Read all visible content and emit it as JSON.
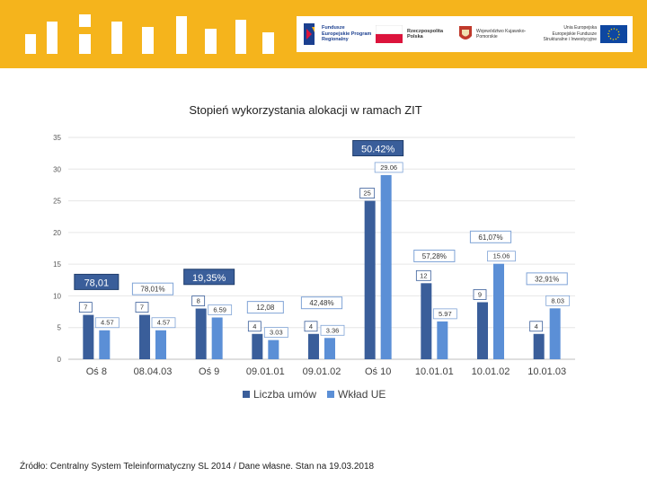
{
  "banner": {
    "logos": {
      "funds_eu": "Fundusze Europejskie Program Regionalny",
      "poland": "Rzeczpospolita Polska",
      "region": "Województwo Kujawsko-Pomorskie",
      "eu": "Unia Europejska Europejskie Fundusze Strukturalne i Inwestycyjne"
    },
    "colors": {
      "banner": "#f5b41c",
      "eu_flag": "#0e47a1",
      "poland_red": "#dc143c"
    }
  },
  "chart_data": {
    "type": "bar",
    "title": "Stopień wykorzystania alokacji w ramach ZIT",
    "categories": [
      "Oś 8",
      "08.04.03",
      "Oś 9",
      "09.01.01",
      "09.01.02",
      "Oś 10",
      "10.01.01",
      "10.01.02",
      "10.01.03"
    ],
    "ylim": [
      0,
      35
    ],
    "yticks": [
      0,
      5,
      10,
      15,
      20,
      25,
      30,
      35
    ],
    "series": [
      {
        "name": "Liczba umów",
        "color": "#3a5e9a",
        "values": [
          7,
          7,
          8,
          4,
          4,
          25,
          12,
          9,
          4
        ],
        "labels": [
          "7",
          "7",
          "8",
          "4",
          "4",
          "25",
          "12",
          "9",
          "4"
        ]
      },
      {
        "name": "Wkład UE",
        "color": "#5b8fd6",
        "values": [
          4.57,
          4.57,
          6.59,
          3.03,
          3.36,
          29.06,
          5.97,
          15.06,
          8.03
        ],
        "labels": [
          "4.57",
          "4.57",
          "6.59",
          "3.03",
          "3.36",
          "29.06",
          "5.97",
          "15.06",
          "8.03"
        ]
      }
    ],
    "percent_annotations": [
      {
        "text": "78,01",
        "category": "Oś 8",
        "y": 12.2,
        "style": "dark"
      },
      {
        "text": "78,01%",
        "category": "08.04.03",
        "y": 11.1,
        "style": "light"
      },
      {
        "text": "19,35%",
        "category": "Oś 9",
        "y": 13.0,
        "style": "dark"
      },
      {
        "text": "12,08",
        "category": "09.01.01",
        "y": 8.2,
        "style": "light"
      },
      {
        "text": "42,48%",
        "category": "09.01.02",
        "y": 8.9,
        "style": "light"
      },
      {
        "text": "50.42%",
        "category": "Oś 10",
        "y": 33.3,
        "style": "dark"
      },
      {
        "text": "57,28%",
        "category": "10.01.01",
        "y": 16.3,
        "style": "light"
      },
      {
        "text": "61,07%",
        "category": "10.01.02",
        "y": 19.3,
        "style": "light"
      },
      {
        "text": "32,91%",
        "category": "10.01.03",
        "y": 12.7,
        "style": "light"
      }
    ]
  },
  "footer": {
    "source": "Źródło: Centralny System Teleinformatyczny SL 2014 / Dane własne. Stan na 19.03.2018"
  }
}
